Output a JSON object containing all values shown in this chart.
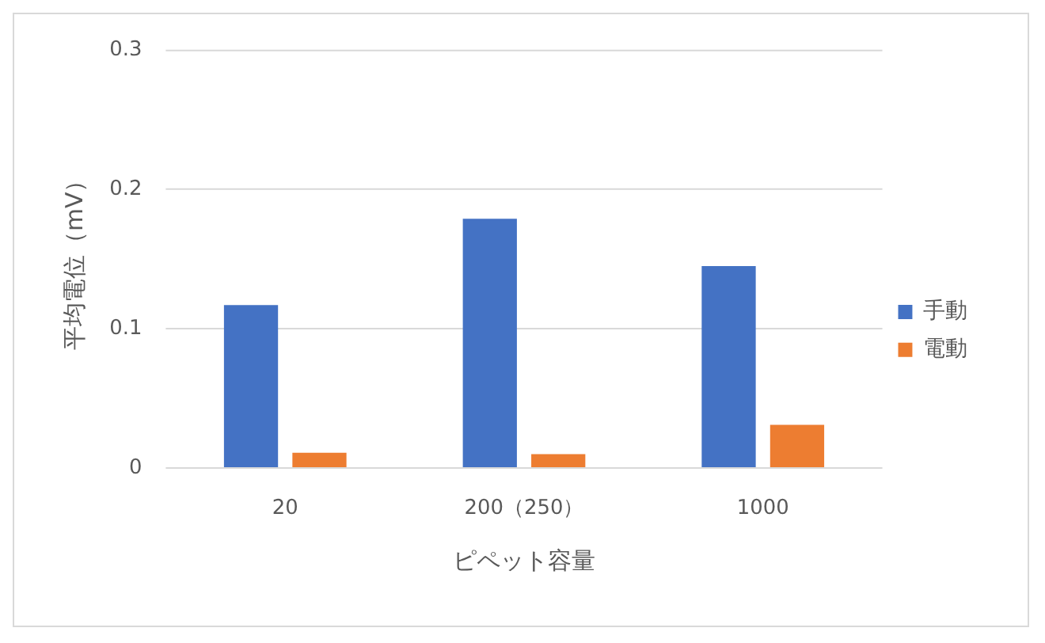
{
  "chart_data": {
    "type": "bar",
    "ylabel": "平均電位（mV）",
    "xlabel": "ピペット容量",
    "categories": [
      "20",
      "200（250）",
      "1000"
    ],
    "series": [
      {
        "name": "手動",
        "color": "#4472c4",
        "values": [
          0.117,
          0.179,
          0.145
        ]
      },
      {
        "name": "電動",
        "color": "#ed7d31",
        "values": [
          0.011,
          0.01,
          0.031
        ]
      }
    ],
    "ylim": [
      0,
      0.3
    ],
    "yticks": [
      0,
      0.1,
      0.2,
      0.3
    ],
    "grid": "y",
    "legend": "right"
  }
}
